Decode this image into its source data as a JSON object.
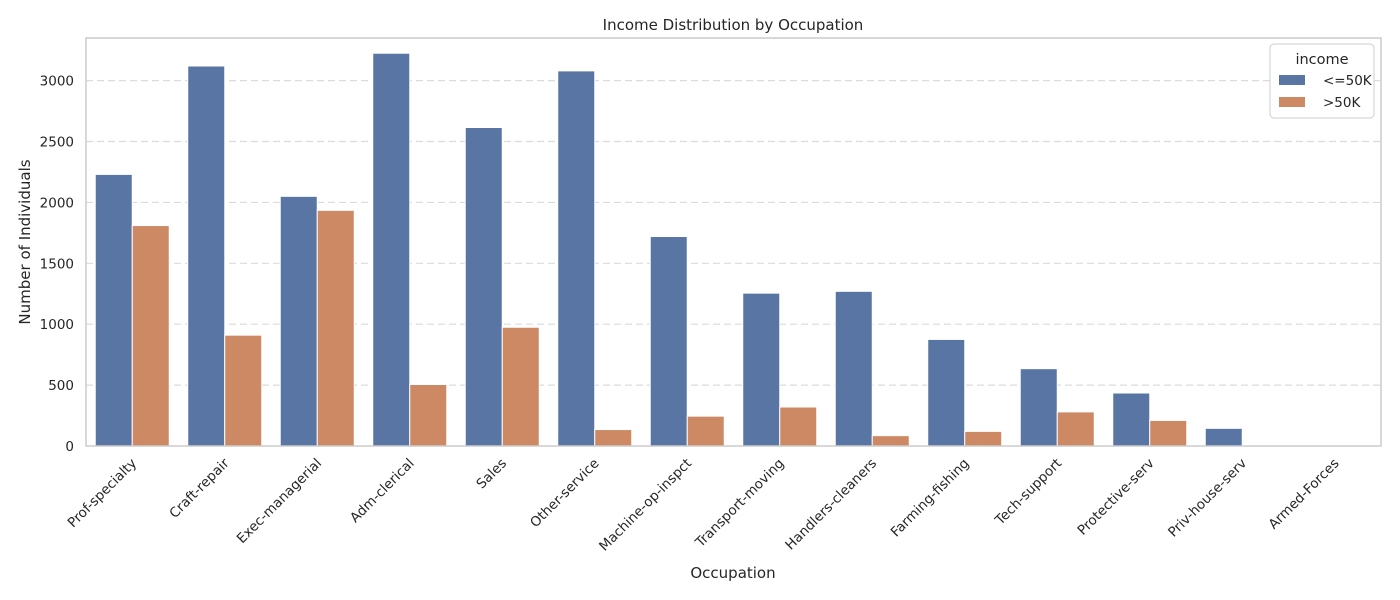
{
  "chart_data": {
    "type": "bar",
    "title": "Income Distribution by Occupation",
    "xlabel": "Occupation",
    "ylabel": "Number of Individuals",
    "ylim": [
      0,
      3350
    ],
    "yticks": [
      0,
      500,
      1000,
      1500,
      2000,
      2500,
      3000
    ],
    "grid": "horizontal dashed",
    "legend": {
      "title": "income",
      "placement": "top-right"
    },
    "categories": [
      "Prof-specialty",
      "Craft-repair",
      "Exec-managerial",
      "Adm-clerical",
      "Sales",
      "Other-service",
      "Machine-op-inspct",
      "Transport-moving",
      "Handlers-cleaners",
      "Farming-fishing",
      "Tech-support",
      "Protective-serv",
      "Priv-house-serv",
      "Armed-Forces"
    ],
    "series": [
      {
        "name": "<=50K",
        "color": "#5875a4",
        "values": [
          2230,
          3120,
          2050,
          3225,
          2615,
          3080,
          1720,
          1255,
          1270,
          875,
          635,
          435,
          145,
          8
        ]
      },
      {
        "name": ">50K",
        "color": "#cc8963",
        "values": [
          1810,
          910,
          1935,
          505,
          975,
          135,
          245,
          320,
          85,
          120,
          280,
          210,
          1,
          1
        ]
      }
    ]
  }
}
